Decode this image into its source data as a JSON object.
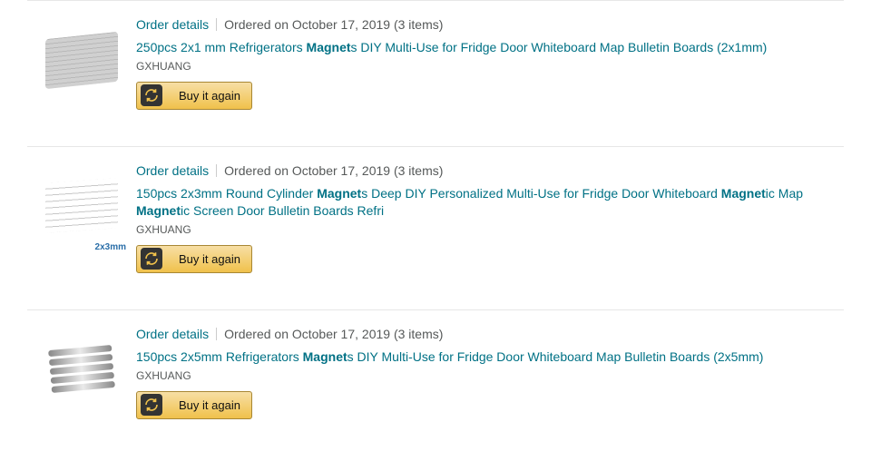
{
  "common": {
    "order_details_label": "Order details",
    "buy_again_label": "Buy it again",
    "highlight_term": "Magnet"
  },
  "orders": [
    {
      "ordered_on": "Ordered on October 17, 2019 (3 items)",
      "title": "250pcs 2x1 mm Refrigerators Magnets DIY Multi-Use for Fridge Door Whiteboard Map Bulletin Boards (2x1mm)",
      "seller": "GXHUANG",
      "thumb_style": "stack",
      "thumb_label": ""
    },
    {
      "ordered_on": "Ordered on October 17, 2019 (3 items)",
      "title": "150pcs 2x3mm Round Cylinder Magnets Deep DIY Personalized Multi-Use for Fridge Door Whiteboard Magnetic Map Magnetic Screen Door Bulletin Boards Refri",
      "seller": "GXHUANG",
      "thumb_style": "grid",
      "thumb_label": "2x3mm"
    },
    {
      "ordered_on": "Ordered on October 17, 2019 (3 items)",
      "title": "150pcs 2x5mm Refrigerators Magnets DIY Multi-Use for Fridge Door Whiteboard Map Bulletin Boards (2x5mm)",
      "seller": "GXHUANG",
      "thumb_style": "rods",
      "thumb_label": ""
    }
  ]
}
